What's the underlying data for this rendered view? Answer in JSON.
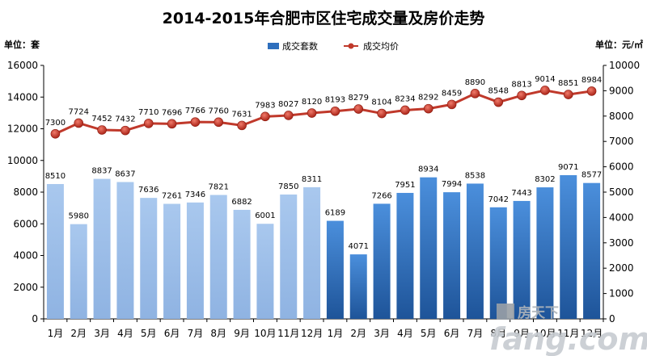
{
  "chart_data": {
    "type": "bar",
    "title": "2014-2015年合肥市区住宅成交量及房价走势",
    "left_axis_label": "单位：套",
    "right_axis_label": "单位：元/㎡",
    "categories": [
      "1月",
      "2月",
      "3月",
      "4月",
      "5月",
      "6月",
      "7月",
      "8月",
      "9月",
      "10月",
      "11月",
      "12月",
      "1月",
      "2月",
      "3月",
      "4月",
      "5月",
      "6月",
      "7月",
      "8月",
      "9月",
      "10月",
      "11月",
      "12月"
    ],
    "ylim_left": [
      0,
      16000
    ],
    "yticks_left": [
      "0",
      "2000",
      "4000",
      "6000",
      "8000",
      "10000",
      "12000",
      "14000",
      "16000"
    ],
    "ylim_right": [
      0,
      10000
    ],
    "yticks_right": [
      "0",
      "1000",
      "2000",
      "3000",
      "4000",
      "5000",
      "6000",
      "7000",
      "8000",
      "9000",
      "10000"
    ],
    "series": [
      {
        "name": "成交套数",
        "type": "bar",
        "axis": "left",
        "values": [
          8510,
          5980,
          8837,
          8637,
          7636,
          7261,
          7346,
          7821,
          6882,
          6001,
          7850,
          8311,
          6189,
          4071,
          7266,
          7951,
          8934,
          7994,
          8538,
          7042,
          7443,
          8302,
          9071,
          8577
        ],
        "labels": [
          "8510",
          "5980",
          "8837",
          "8637",
          "7636",
          "7261",
          "7346",
          "7821",
          "6882",
          "6001",
          "7850",
          "8311",
          "6189",
          "4071",
          "7266",
          "7951",
          "8934",
          "7994",
          "8538",
          "7042",
          "7443",
          "8302",
          "9071",
          "8577"
        ],
        "color_2014": "#95b8e6",
        "color_2015": "#2e6fbd"
      },
      {
        "name": "成交均价",
        "type": "line",
        "axis": "right",
        "values": [
          7300,
          7724,
          7452,
          7432,
          7710,
          7696,
          7766,
          7760,
          7631,
          7983,
          8027,
          8120,
          8193,
          8279,
          8104,
          8234,
          8292,
          8459,
          8890,
          8548,
          8813,
          9014,
          8851,
          8984
        ],
        "labels": [
          "7300",
          "7724",
          "7452",
          "7432",
          "7710",
          "7696",
          "7766",
          "7760",
          "7631",
          "7983",
          "8027",
          "8120",
          "8193",
          "8279",
          "8104",
          "8234",
          "8292",
          "8459",
          "8890",
          "8548",
          "8813",
          "9014",
          "8851",
          "8984"
        ],
        "color": "#c0392b"
      }
    ],
    "legend_position": "top-center",
    "grid": false
  },
  "watermark": {
    "brand": "房天下",
    "domain": "fang.com"
  }
}
